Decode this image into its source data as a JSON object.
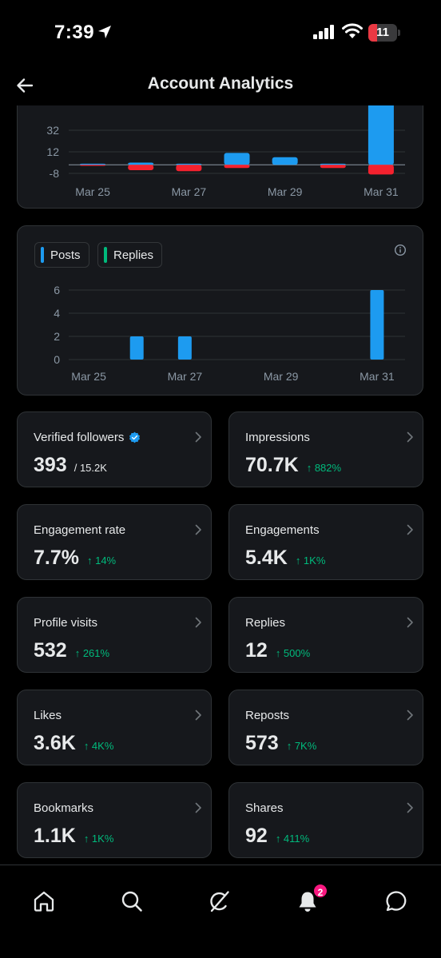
{
  "status_bar": {
    "time": "7:39",
    "battery": "11",
    "battery_level": 0.11
  },
  "header": {
    "title": "Account Analytics"
  },
  "colors": {
    "posts": "#1d9bf0",
    "replies": "#00ba7c",
    "negative": "#f4212e",
    "positive_change": "#00ba7c"
  },
  "chart_data": [
    {
      "type": "bar",
      "y_ticks": [
        "32",
        "12",
        "-8"
      ],
      "y_tick_values": [
        32,
        12,
        -8
      ],
      "x_tick_labels": [
        "Mar 25",
        "Mar 27",
        "Mar 29",
        "Mar 31"
      ],
      "categories": [
        "Mar 25",
        "Mar 26",
        "Mar 27",
        "Mar 28",
        "Mar 29",
        "Mar 30",
        "Mar 31"
      ],
      "series": [
        {
          "color": "#1d9bf0",
          "values": [
            1,
            2,
            1,
            11,
            7,
            1,
            72
          ]
        },
        {
          "color": "#f4212e",
          "values": [
            -1,
            -5,
            -6,
            -3,
            0,
            -3,
            -9
          ]
        }
      ]
    },
    {
      "type": "bar",
      "legend": [
        {
          "label": "Posts",
          "color": "#1d9bf0"
        },
        {
          "label": "Replies",
          "color": "#00ba7c"
        }
      ],
      "y_ticks": [
        "6",
        "4",
        "2",
        "0"
      ],
      "y_tick_values": [
        6,
        4,
        2,
        0
      ],
      "ylim": [
        0,
        6
      ],
      "x_tick_labels": [
        "Mar 25",
        "Mar 27",
        "Mar 29",
        "Mar 31"
      ],
      "categories": [
        "Mar 25",
        "Mar 26",
        "Mar 27",
        "Mar 28",
        "Mar 29",
        "Mar 30",
        "Mar 31"
      ],
      "series": [
        {
          "name": "Posts",
          "color": "#1d9bf0",
          "values": [
            0,
            2,
            2,
            0,
            0,
            0,
            6
          ]
        },
        {
          "name": "Replies",
          "color": "#00ba7c",
          "values": [
            0,
            0,
            0,
            0,
            0,
            0,
            0
          ]
        }
      ]
    }
  ],
  "metrics": [
    {
      "label": "Verified followers",
      "value": "393",
      "sub": "/ 15.2K",
      "change": "",
      "verified": true
    },
    {
      "label": "Impressions",
      "value": "70.7K",
      "sub": "",
      "change": "↑ 882%"
    },
    {
      "label": "Engagement rate",
      "value": "7.7%",
      "sub": "",
      "change": "↑ 14%"
    },
    {
      "label": "Engagements",
      "value": "5.4K",
      "sub": "",
      "change": "↑ 1K%"
    },
    {
      "label": "Profile visits",
      "value": "532",
      "sub": "",
      "change": "↑ 261%"
    },
    {
      "label": "Replies",
      "value": "12",
      "sub": "",
      "change": "↑ 500%"
    },
    {
      "label": "Likes",
      "value": "3.6K",
      "sub": "",
      "change": "↑ 4K%"
    },
    {
      "label": "Reposts",
      "value": "573",
      "sub": "",
      "change": "↑ 7K%"
    },
    {
      "label": "Bookmarks",
      "value": "1.1K",
      "sub": "",
      "change": "↑ 1K%"
    },
    {
      "label": "Shares",
      "value": "92",
      "sub": "",
      "change": "↑ 411%"
    }
  ],
  "bottom_nav": {
    "items": [
      "home-icon",
      "search-icon",
      "grok-icon",
      "bell-icon",
      "messages-icon"
    ],
    "notifications_badge": "2"
  }
}
